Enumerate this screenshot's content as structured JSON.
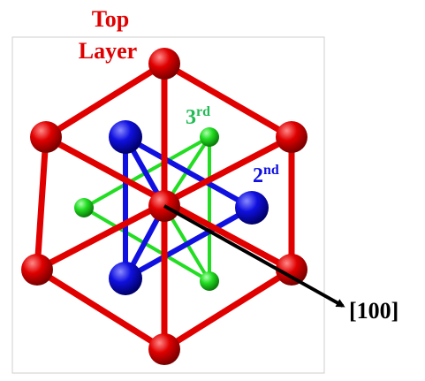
{
  "labels": {
    "top_layer": [
      "Top",
      "Layer"
    ],
    "third": {
      "main": "3",
      "sup": "rd"
    },
    "second": {
      "main": "2",
      "sup": "nd"
    },
    "direction": "[100]"
  }
}
